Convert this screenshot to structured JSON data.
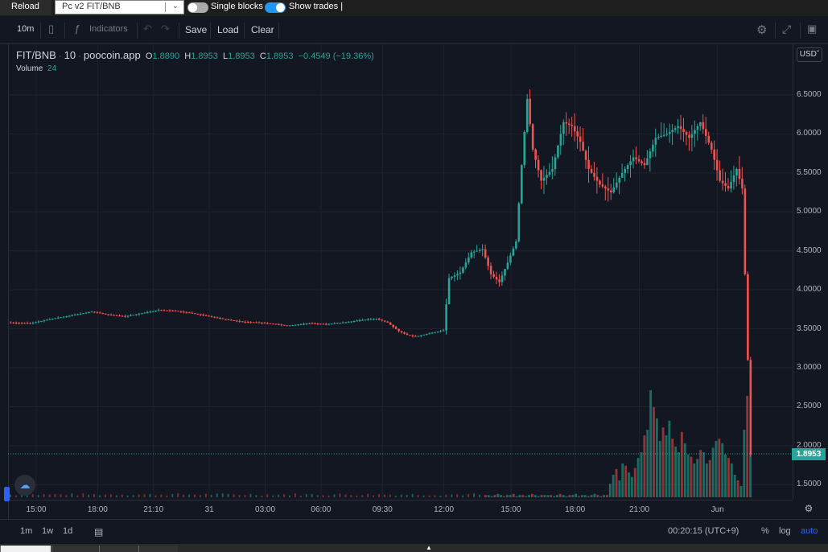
{
  "topbar": {
    "reload_label": "Reload",
    "pair_value": "Pc v2 FIT/BNB",
    "single_blocks_label": "Single blocks",
    "show_trades_label": "Show trades |"
  },
  "toolbar": {
    "interval": "10m",
    "indicators_label": "Indicators",
    "save_label": "Save",
    "load_label": "Load",
    "clear_label": "Clear"
  },
  "legend": {
    "symbol": "FIT/BNB",
    "interval": "10",
    "source": "poocoin.app",
    "o_key": "O",
    "o_val": "1.8890",
    "h_key": "H",
    "h_val": "1.8953",
    "l_key": "L",
    "l_val": "1.8953",
    "c_key": "C",
    "c_val": "1.8953",
    "change": "−0.4549 (−19.36%)",
    "volume_label": "Volume",
    "volume_val": "24"
  },
  "currency": "USD",
  "bottom": {
    "ranges": [
      "1m",
      "1w",
      "1d"
    ],
    "clock": "00:20:15 (UTC+9)",
    "percent": "%",
    "log": "log",
    "auto": "auto"
  },
  "colors": {
    "up": "#26a69a",
    "down": "#ef5350",
    "accent": "#2196f3"
  },
  "chart_data": {
    "type": "candlestick",
    "series_name": "FIT/BNB",
    "current_price": 1.8953,
    "current_price_label": "1.8953",
    "ylim": [
      1.4,
      6.5
    ],
    "yticks": [
      "6.5000",
      "6.0000",
      "5.5000",
      "5.0000",
      "4.5000",
      "4.0000",
      "3.5000",
      "3.0000",
      "2.5000",
      "2.0000",
      "1.5000"
    ],
    "xticks": [
      "15:00",
      "18:00",
      "21:10",
      "31",
      "03:00",
      "06:00",
      "09:30",
      "12:00",
      "15:00",
      "18:00",
      "21:00",
      "Jun"
    ],
    "price_path": [
      [
        0,
        3.58
      ],
      [
        8,
        3.57
      ],
      [
        16,
        3.63
      ],
      [
        24,
        3.68
      ],
      [
        30,
        3.72
      ],
      [
        36,
        3.68
      ],
      [
        42,
        3.66
      ],
      [
        48,
        3.7
      ],
      [
        54,
        3.74
      ],
      [
        60,
        3.73
      ],
      [
        66,
        3.7
      ],
      [
        72,
        3.66
      ],
      [
        78,
        3.62
      ],
      [
        84,
        3.59
      ],
      [
        90,
        3.58
      ],
      [
        96,
        3.56
      ],
      [
        100,
        3.54
      ],
      [
        108,
        3.57
      ],
      [
        114,
        3.56
      ],
      [
        120,
        3.58
      ],
      [
        126,
        3.61
      ],
      [
        132,
        3.63
      ],
      [
        136,
        3.58
      ],
      [
        140,
        3.47
      ],
      [
        143,
        3.42
      ],
      [
        146,
        3.4
      ],
      [
        152,
        3.45
      ],
      [
        156,
        3.48
      ],
      [
        158,
        4.15
      ],
      [
        162,
        4.22
      ],
      [
        166,
        4.48
      ],
      [
        170,
        4.52
      ],
      [
        173,
        4.2
      ],
      [
        176,
        4.1
      ],
      [
        179,
        4.35
      ],
      [
        182,
        4.62
      ],
      [
        184,
        5.6
      ],
      [
        186,
        6.45
      ],
      [
        188,
        5.8
      ],
      [
        191,
        5.4
      ],
      [
        195,
        5.55
      ],
      [
        199,
        6.15
      ],
      [
        202,
        6.1
      ],
      [
        205,
        5.9
      ],
      [
        208,
        5.55
      ],
      [
        212,
        5.35
      ],
      [
        216,
        5.25
      ],
      [
        220,
        5.5
      ],
      [
        224,
        5.7
      ],
      [
        228,
        5.6
      ],
      [
        232,
        5.95
      ],
      [
        236,
        6.0
      ],
      [
        240,
        6.1
      ],
      [
        244,
        5.95
      ],
      [
        248,
        6.15
      ],
      [
        252,
        5.8
      ],
      [
        255,
        5.4
      ],
      [
        258,
        5.3
      ],
      [
        261,
        5.55
      ],
      [
        263,
        5.3
      ],
      [
        265,
        3.1
      ],
      [
        266,
        1.89
      ]
    ],
    "volume_bars": [
      0.02,
      0.02,
      0.01,
      0.02,
      0.03,
      0.02,
      0.01,
      0.02,
      0.02,
      0.03,
      0.01,
      0.02,
      0.02,
      0.01,
      0.02,
      0.03,
      0.02,
      0.01,
      0.02,
      0.02,
      0.02,
      0.02,
      0.01,
      0.02,
      0.03,
      0.02,
      0.01,
      0.02,
      0.02,
      0.03,
      0.01,
      0.02,
      0.02,
      0.01,
      0.02,
      0.03,
      0.02,
      0.01,
      0.02,
      0.02,
      0.12,
      0.2,
      0.25,
      0.15,
      0.3,
      0.28,
      0.22,
      0.18,
      0.26,
      0.35,
      0.4,
      0.55,
      0.6,
      0.95,
      0.8,
      0.7,
      0.5,
      0.62,
      0.55,
      0.68,
      0.52,
      0.45,
      0.4,
      0.58,
      0.48,
      0.38,
      0.36,
      0.3,
      0.34,
      0.42,
      0.4,
      0.3,
      0.33,
      0.44,
      0.5,
      0.52,
      0.48,
      0.38,
      0.35,
      0.3,
      0.2,
      0.15,
      0.1,
      0.6,
      0.9,
      0.4
    ]
  }
}
